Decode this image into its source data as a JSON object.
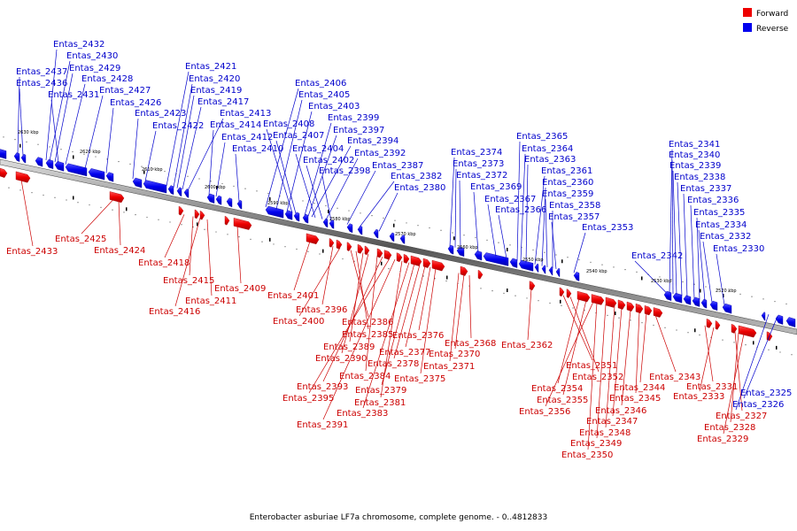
{
  "legend": {
    "forward_label": "Forward",
    "reverse_label": "Reverse",
    "forward_color": "#ee0000",
    "reverse_color": "#0000ee"
  },
  "caption": "Enterobacter asburiae LF7a chromosome, complete genome. - 0..4812833",
  "ticks": [
    "2630 kbp",
    "2620 kbp",
    "2610 kbp",
    "2600 kbp",
    "2590 kbp",
    "2580 kbp",
    "2570 kbp",
    "2560 kbp",
    "2550 kbp",
    "2540 kbp",
    "2530 kbp",
    "2520 kbp"
  ],
  "reverse_genes": [
    "Entas_2437",
    "Entas_2436",
    "Entas_2432",
    "Entas_2430",
    "Entas_2429",
    "Entas_2431",
    "Entas_2428",
    "Entas_2427",
    "Entas_2426",
    "Entas_2423",
    "Entas_2422",
    "Entas_2421",
    "Entas_2420",
    "Entas_2419",
    "Entas_2417",
    "Entas_2413",
    "Entas_2414",
    "Entas_2412",
    "Entas_2410",
    "Entas_2406",
    "Entas_2405",
    "Entas_2403",
    "Entas_2408",
    "Entas_2407",
    "Entas_2399",
    "Entas_2397",
    "Entas_2394",
    "Entas_2404",
    "Entas_2392",
    "Entas_2402",
    "Entas_2398",
    "Entas_2387",
    "Entas_2382",
    "Entas_2380",
    "Entas_2374",
    "Entas_2373",
    "Entas_2372",
    "Entas_2369",
    "Entas_2367",
    "Entas_2366",
    "Entas_2365",
    "Entas_2364",
    "Entas_2363",
    "Entas_2361",
    "Entas_2360",
    "Entas_2359",
    "Entas_2358",
    "Entas_2357",
    "Entas_2353",
    "Entas_2342",
    "Entas_2341",
    "Entas_2340",
    "Entas_2339",
    "Entas_2338",
    "Entas_2337",
    "Entas_2336",
    "Entas_2335",
    "Entas_2334",
    "Entas_2332",
    "Entas_2330",
    "Entas_2326",
    "Entas_2325"
  ],
  "forward_genes": [
    "Entas_2433",
    "Entas_2425",
    "Entas_2424",
    "Entas_2418",
    "Entas_2415",
    "Entas_2416",
    "Entas_2411",
    "Entas_2409",
    "Entas_2401",
    "Entas_2396",
    "Entas_2400",
    "Entas_2386",
    "Entas_2385",
    "Entas_2389",
    "Entas_2390",
    "Entas_2384",
    "Entas_2393",
    "Entas_2395",
    "Entas_2391",
    "Entas_2381",
    "Entas_2383",
    "Entas_2379",
    "Entas_2378",
    "Entas_2377",
    "Entas_2376",
    "Entas_2375",
    "Entas_2371",
    "Entas_2370",
    "Entas_2368",
    "Entas_2362",
    "Entas_2351",
    "Entas_2352",
    "Entas_2354",
    "Entas_2355",
    "Entas_2356",
    "Entas_2350",
    "Entas_2349",
    "Entas_2348",
    "Entas_2347",
    "Entas_2346",
    "Entas_2345",
    "Entas_2344",
    "Entas_2343",
    "Entas_2331",
    "Entas_2333",
    "Entas_2327",
    "Entas_2328",
    "Entas_2329"
  ]
}
